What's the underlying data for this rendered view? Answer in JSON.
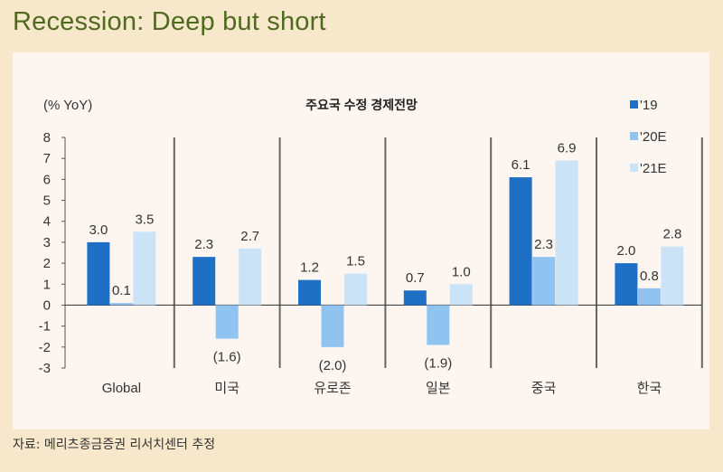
{
  "header": {
    "title": "Recession: Deep but short"
  },
  "footer": {
    "source": "자료: 메리츠종금증권 리서치센터 추정"
  },
  "colors": {
    "19": "#1f6fc5",
    "20E": "#90c3ef",
    "21E": "#cbe3f6",
    "background": "#f8e8cb",
    "panel": "#fdf6f0",
    "title": "#4f6a1f"
  },
  "chart_data": {
    "type": "bar",
    "title": "주요국 수정 경제전망",
    "ylabel": "(% YoY)",
    "ylim": [
      -3,
      8
    ],
    "yticks": [
      "8",
      "7",
      "6",
      "5",
      "4",
      "3",
      "2",
      "1",
      "0",
      "-1",
      "-2",
      "-3"
    ],
    "categories": [
      "Global",
      "미국",
      "유로존",
      "일본",
      "중국",
      "한국"
    ],
    "legend_position": "right",
    "grid": false,
    "series": [
      {
        "name": "'19",
        "values": [
          3.0,
          2.3,
          1.2,
          0.7,
          6.1,
          2.0
        ],
        "labels": [
          "3.0",
          "2.3",
          "1.2",
          "0.7",
          "6.1",
          "2.0"
        ]
      },
      {
        "name": "'20E",
        "values": [
          0.1,
          -1.6,
          -2.0,
          -1.9,
          2.3,
          0.8
        ],
        "labels": [
          "0.1",
          "(1.6)",
          "(2.0)",
          "(1.9)",
          "2.3",
          "0.8"
        ]
      },
      {
        "name": "'21E",
        "values": [
          3.5,
          2.7,
          1.5,
          1.0,
          6.9,
          2.8
        ],
        "labels": [
          "3.5",
          "2.7",
          "1.5",
          "1.0",
          "6.9",
          "2.8"
        ]
      }
    ]
  }
}
